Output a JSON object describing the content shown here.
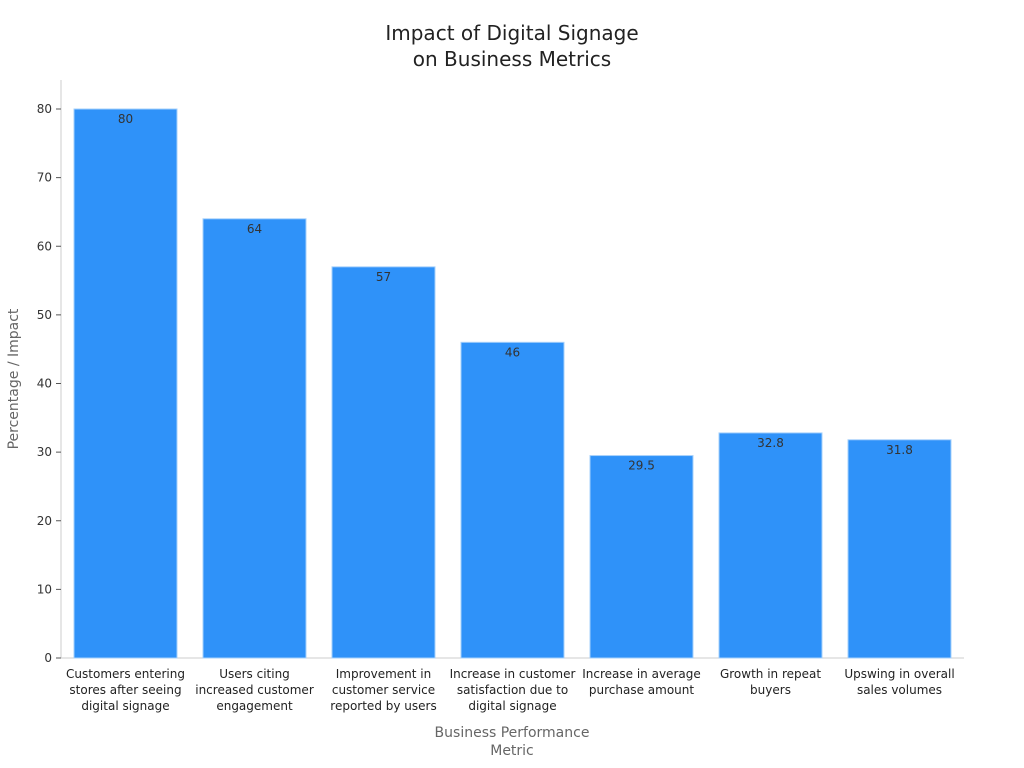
{
  "chart_data": {
    "type": "bar",
    "title": [
      "Impact of Digital Signage",
      "on Business Metrics"
    ],
    "xlabel": [
      "Business Performance",
      "Metric"
    ],
    "ylabel": "Percentage / Impact",
    "categories": [
      [
        "Customers entering",
        "stores after seeing",
        "digital signage"
      ],
      [
        "Users citing",
        "increased customer",
        "engagement"
      ],
      [
        "Improvement in",
        "customer service",
        "reported by users"
      ],
      [
        "Increase in customer",
        "satisfaction due to",
        "digital signage"
      ],
      [
        "Increase in average",
        "purchase amount"
      ],
      [
        "Growth in repeat",
        "buyers"
      ],
      [
        "Upswing in overall",
        "sales volumes"
      ]
    ],
    "values": [
      80,
      64,
      57,
      46,
      29.5,
      32.8,
      31.8
    ],
    "value_labels": [
      "80",
      "64",
      "57",
      "46",
      "29.5",
      "32.8",
      "31.8"
    ],
    "ylim": [
      0,
      84
    ],
    "yticks": [
      0,
      10,
      20,
      30,
      40,
      50,
      60,
      70,
      80
    ],
    "grid": false,
    "legend": "none",
    "colors": {
      "bar": "#2f92f9",
      "bar_edge": "#a6d0fb",
      "axis": "#cccccc",
      "tick": "#555555"
    }
  }
}
